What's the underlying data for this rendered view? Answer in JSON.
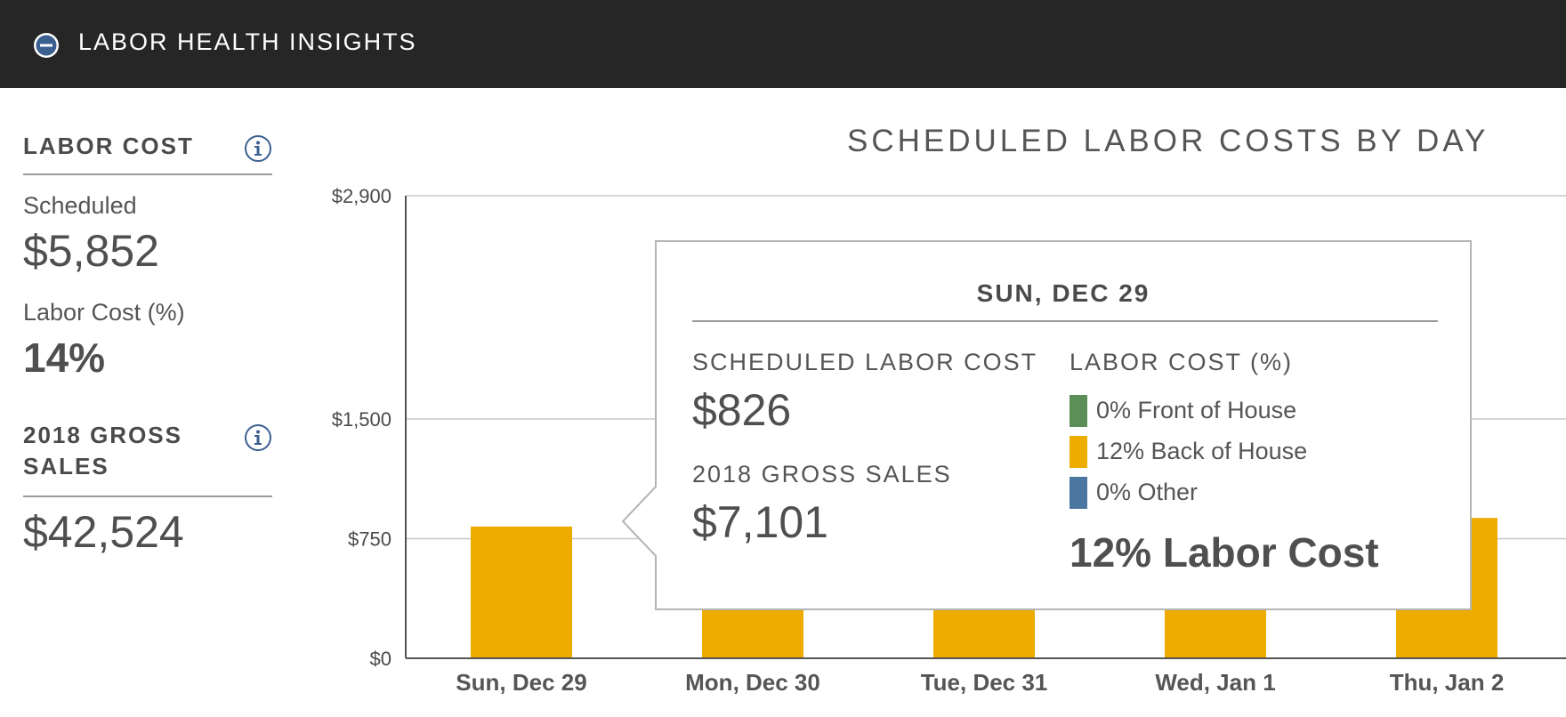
{
  "header": {
    "title": "LABOR HEALTH INSIGHTS",
    "collapse_icon": "minus-circle-icon"
  },
  "sidebar": {
    "labor_cost": {
      "heading": "LABOR COST",
      "scheduled_label": "Scheduled",
      "scheduled_value": "$5,852",
      "percent_label": "Labor Cost (%)",
      "percent_value": "14%"
    },
    "gross_sales": {
      "heading_line1": "2018 GROSS",
      "heading_line2": "SALES",
      "value": "$42,524"
    }
  },
  "chart_data": {
    "type": "bar",
    "title": "SCHEDULED LABOR COSTS BY DAY",
    "categories": [
      "Sun, Dec 29",
      "Mon, Dec 30",
      "Tue, Dec 31",
      "Wed, Jan 1",
      "Thu, Jan 2"
    ],
    "values": [
      826,
      650,
      650,
      650,
      880
    ],
    "ylim": [
      0,
      2900
    ],
    "yticks": [
      0,
      750,
      1500,
      2900
    ],
    "ytick_labels": [
      "$0",
      "$750",
      "$1,500",
      "$2,900"
    ],
    "grid": true,
    "bar_color": "#EEAB00"
  },
  "tooltip": {
    "day": "SUN, DEC 29",
    "scheduled_label": "SCHEDULED LABOR COST",
    "scheduled_value": "$826",
    "gross_label": "2018 GROSS SALES",
    "gross_value": "$7,101",
    "percent_label": "LABOR COST (%)",
    "legend": [
      {
        "text": "0% Front of House",
        "color": "#5B8F55"
      },
      {
        "text": "12% Back of House",
        "color": "#EEAB00"
      },
      {
        "text": "0% Other",
        "color": "#4A76A0"
      }
    ],
    "total": "12% Labor Cost"
  }
}
